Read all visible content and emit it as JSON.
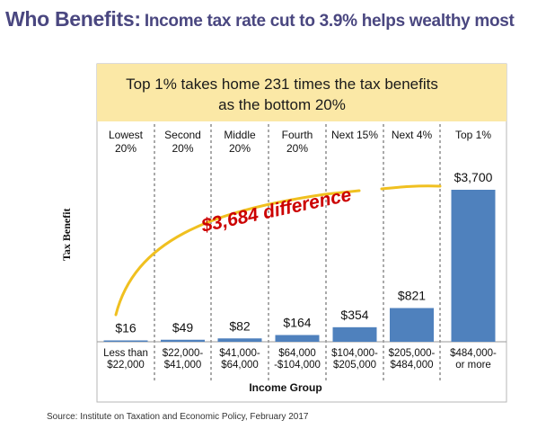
{
  "headline": {
    "lead": "Who Benefits:",
    "rest": "Income tax rate cut to 3.9% helps wealthy most"
  },
  "source": "Source: Institute on Taxation and Economic Policy, February 2017",
  "colors": {
    "bar": "#4f81bd",
    "banner": "#fbe8a6",
    "headline": "#4a4780",
    "annotation": "#cc0000",
    "arrow": "#f0c020"
  },
  "chart_data": {
    "type": "bar",
    "title": "Top 1% takes home 231 times the tax benefits as the bottom 20%",
    "title_lines": [
      "Top 1% takes home 231 times the tax benefits",
      "as the bottom 20%"
    ],
    "xlabel": "Income Group",
    "ylabel": "Tax Benefit",
    "ylim": [
      0,
      3700
    ],
    "grid": false,
    "legend": "none",
    "group_labels": [
      [
        "Lowest",
        "20%"
      ],
      [
        "Second",
        "20%"
      ],
      [
        "Middle",
        "20%"
      ],
      [
        "Fourth",
        "20%"
      ],
      [
        "Next 15%"
      ],
      [
        "Next 4%"
      ],
      [
        "Top 1%"
      ]
    ],
    "categories": [
      [
        "Less than",
        "$22,000"
      ],
      [
        "$22,000-",
        "$41,000"
      ],
      [
        "$41,000-",
        "$64,000"
      ],
      [
        "$64,000",
        "-$104,000"
      ],
      [
        "$104,000-",
        "$205,000"
      ],
      [
        "$205,000-",
        "$484,000"
      ],
      [
        "$484,000-",
        "or more"
      ]
    ],
    "values": [
      16,
      49,
      82,
      164,
      354,
      821,
      3700
    ],
    "data_labels": [
      "$16",
      "$49",
      "$82",
      "$164",
      "$354",
      "$821",
      "$3,700"
    ],
    "annotation": "$3,684 difference"
  }
}
